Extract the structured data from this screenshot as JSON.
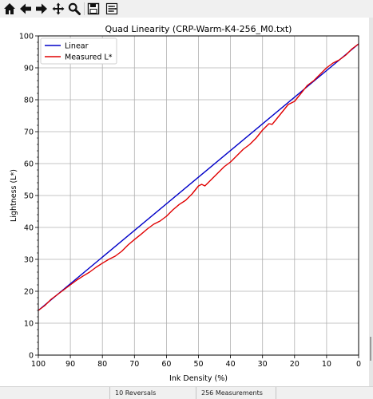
{
  "toolbar": {
    "buttons": [
      {
        "icon": "home-icon",
        "name": "home-button"
      },
      {
        "icon": "back-arrow-icon",
        "name": "back-button"
      },
      {
        "icon": "forward-arrow-icon",
        "name": "forward-button"
      },
      {
        "icon": "pan-move-icon",
        "name": "pan-button"
      },
      {
        "icon": "zoom-magnifier-icon",
        "name": "zoom-button"
      },
      {
        "icon": "save-disk-icon",
        "name": "save-button"
      },
      {
        "icon": "configure-subplots-icon",
        "name": "configure-subplots-button"
      }
    ]
  },
  "status": {
    "reversals": "10 Reversals",
    "measurements": "256 Measurements"
  },
  "colors": {
    "linear": "#0000c8",
    "measured": "#e00000",
    "grid": "#b0b0b0"
  },
  "chart_data": {
    "type": "line",
    "title": "Quad Linearity  (CRP-Warm-K4-256_M0.txt)",
    "xlabel": "Ink Density (%)",
    "ylabel": "Lightness (L*)",
    "xlim": [
      100,
      0
    ],
    "ylim": [
      0,
      100
    ],
    "x_ticks": [
      100,
      90,
      80,
      70,
      60,
      50,
      40,
      30,
      20,
      10,
      0
    ],
    "y_ticks": [
      0,
      10,
      20,
      30,
      40,
      50,
      60,
      70,
      80,
      90,
      100
    ],
    "grid": true,
    "legend": "top-left",
    "series": [
      {
        "name": "Linear",
        "x": [
          100,
          0
        ],
        "y": [
          14,
          97.5
        ]
      },
      {
        "name": "Measured L*",
        "x": [
          100,
          98,
          96,
          94,
          92,
          90,
          88,
          86,
          84,
          82,
          80,
          78,
          76,
          74,
          72,
          70,
          68,
          66,
          64,
          62,
          60,
          58,
          56,
          54,
          52,
          50,
          49,
          48,
          46,
          44,
          42,
          40,
          38,
          36,
          34,
          32,
          30,
          28,
          27,
          26,
          24,
          22,
          20,
          18,
          16,
          14,
          12,
          10,
          8,
          6,
          4,
          2,
          0
        ],
        "y": [
          14,
          15.5,
          17.5,
          19,
          20.5,
          22,
          23.5,
          24.8,
          26,
          27.5,
          28.8,
          30,
          31,
          32.5,
          34.5,
          36.2,
          37.8,
          39.5,
          41,
          42,
          43.5,
          45.5,
          47.2,
          48.5,
          50.5,
          53,
          53.5,
          53,
          55,
          57,
          59,
          60.5,
          62.5,
          64.5,
          66,
          68,
          70.5,
          72.5,
          72.3,
          73.5,
          76,
          78.5,
          79.5,
          82,
          84.5,
          86,
          88,
          90,
          91.5,
          92.5,
          94,
          96,
          97.5
        ]
      }
    ]
  }
}
